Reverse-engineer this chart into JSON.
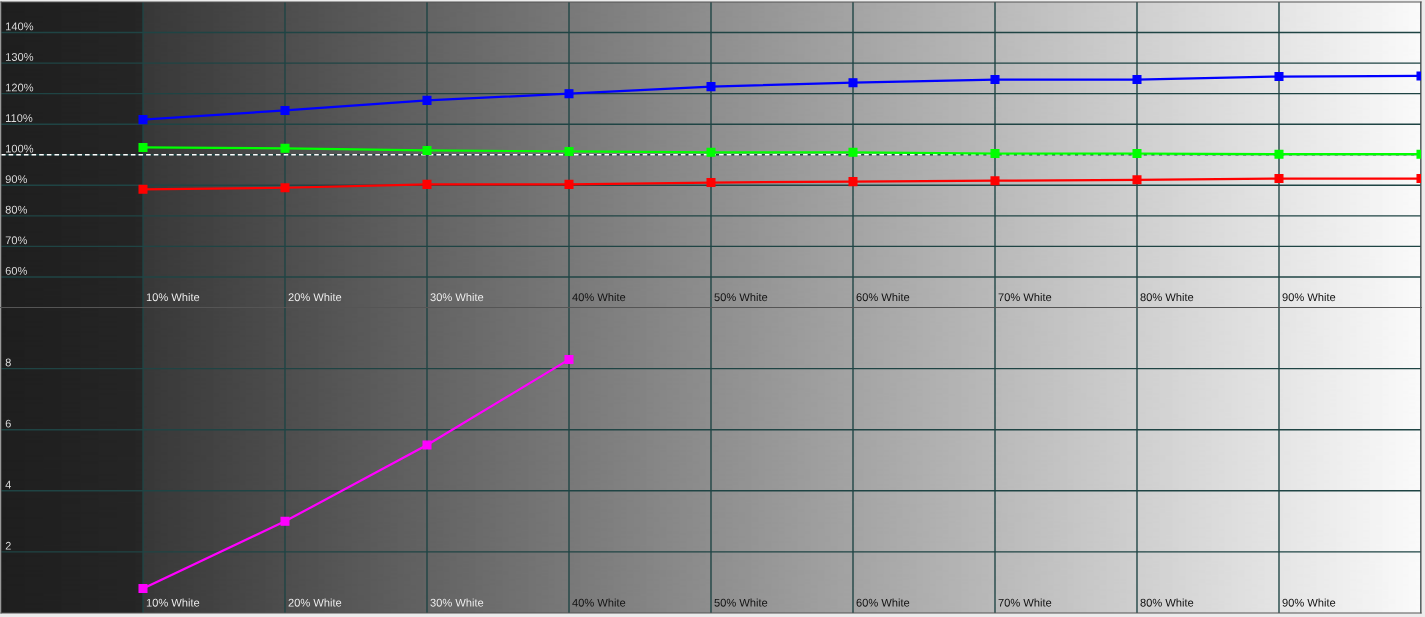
{
  "chart_data": [
    {
      "type": "line",
      "categories": [
        "10% White",
        "20% White",
        "30% White",
        "40% White",
        "50% White",
        "60% White",
        "70% White",
        "80% White",
        "90% White",
        null
      ],
      "series": [
        {
          "color": "#0000ff",
          "values": [
            111.5,
            114.5,
            117.8,
            120.0,
            122.3,
            123.6,
            124.6,
            124.6,
            125.6,
            125.8
          ]
        },
        {
          "color": "#00ff00",
          "values": [
            102.4,
            102.1,
            101.4,
            101.1,
            100.8,
            100.8,
            100.4,
            100.4,
            100.2,
            100.2
          ]
        },
        {
          "color": "#ff0000",
          "values": [
            88.7,
            89.2,
            90.3,
            90.3,
            90.9,
            91.2,
            91.5,
            91.8,
            92.2,
            92.2
          ]
        }
      ],
      "ylim": [
        50,
        150
      ],
      "yticks": [
        {
          "value": 60,
          "label": "60%"
        },
        {
          "value": 70,
          "label": "70%"
        },
        {
          "value": 80,
          "label": "80%"
        },
        {
          "value": 90,
          "label": "90%"
        },
        {
          "value": 100,
          "label": "100%"
        },
        {
          "value": 110,
          "label": "110%"
        },
        {
          "value": 120,
          "label": "120%"
        },
        {
          "value": 130,
          "label": "130%"
        },
        {
          "value": 140,
          "label": "140%"
        }
      ],
      "ref_lines": [
        {
          "axis": "y",
          "value": 100,
          "color": "#ffffff",
          "line_style": "dashed"
        }
      ],
      "grid": true,
      "marker": "square",
      "line_style": "solid"
    },
    {
      "type": "line",
      "categories": [
        "10% White",
        "20% White",
        "30% White",
        "40% White",
        "50% White",
        "60% White",
        "70% White",
        "80% White",
        "90% White",
        null
      ],
      "series": [
        {
          "color": "#ff00ff",
          "values": [
            0.8,
            3.0,
            5.5,
            8.3,
            null,
            null,
            null,
            null,
            null,
            null
          ]
        }
      ],
      "ylim": [
        0,
        10
      ],
      "yticks": [
        2,
        4,
        6,
        8
      ],
      "grid": true,
      "marker": "square",
      "line_style": "solid"
    }
  ]
}
